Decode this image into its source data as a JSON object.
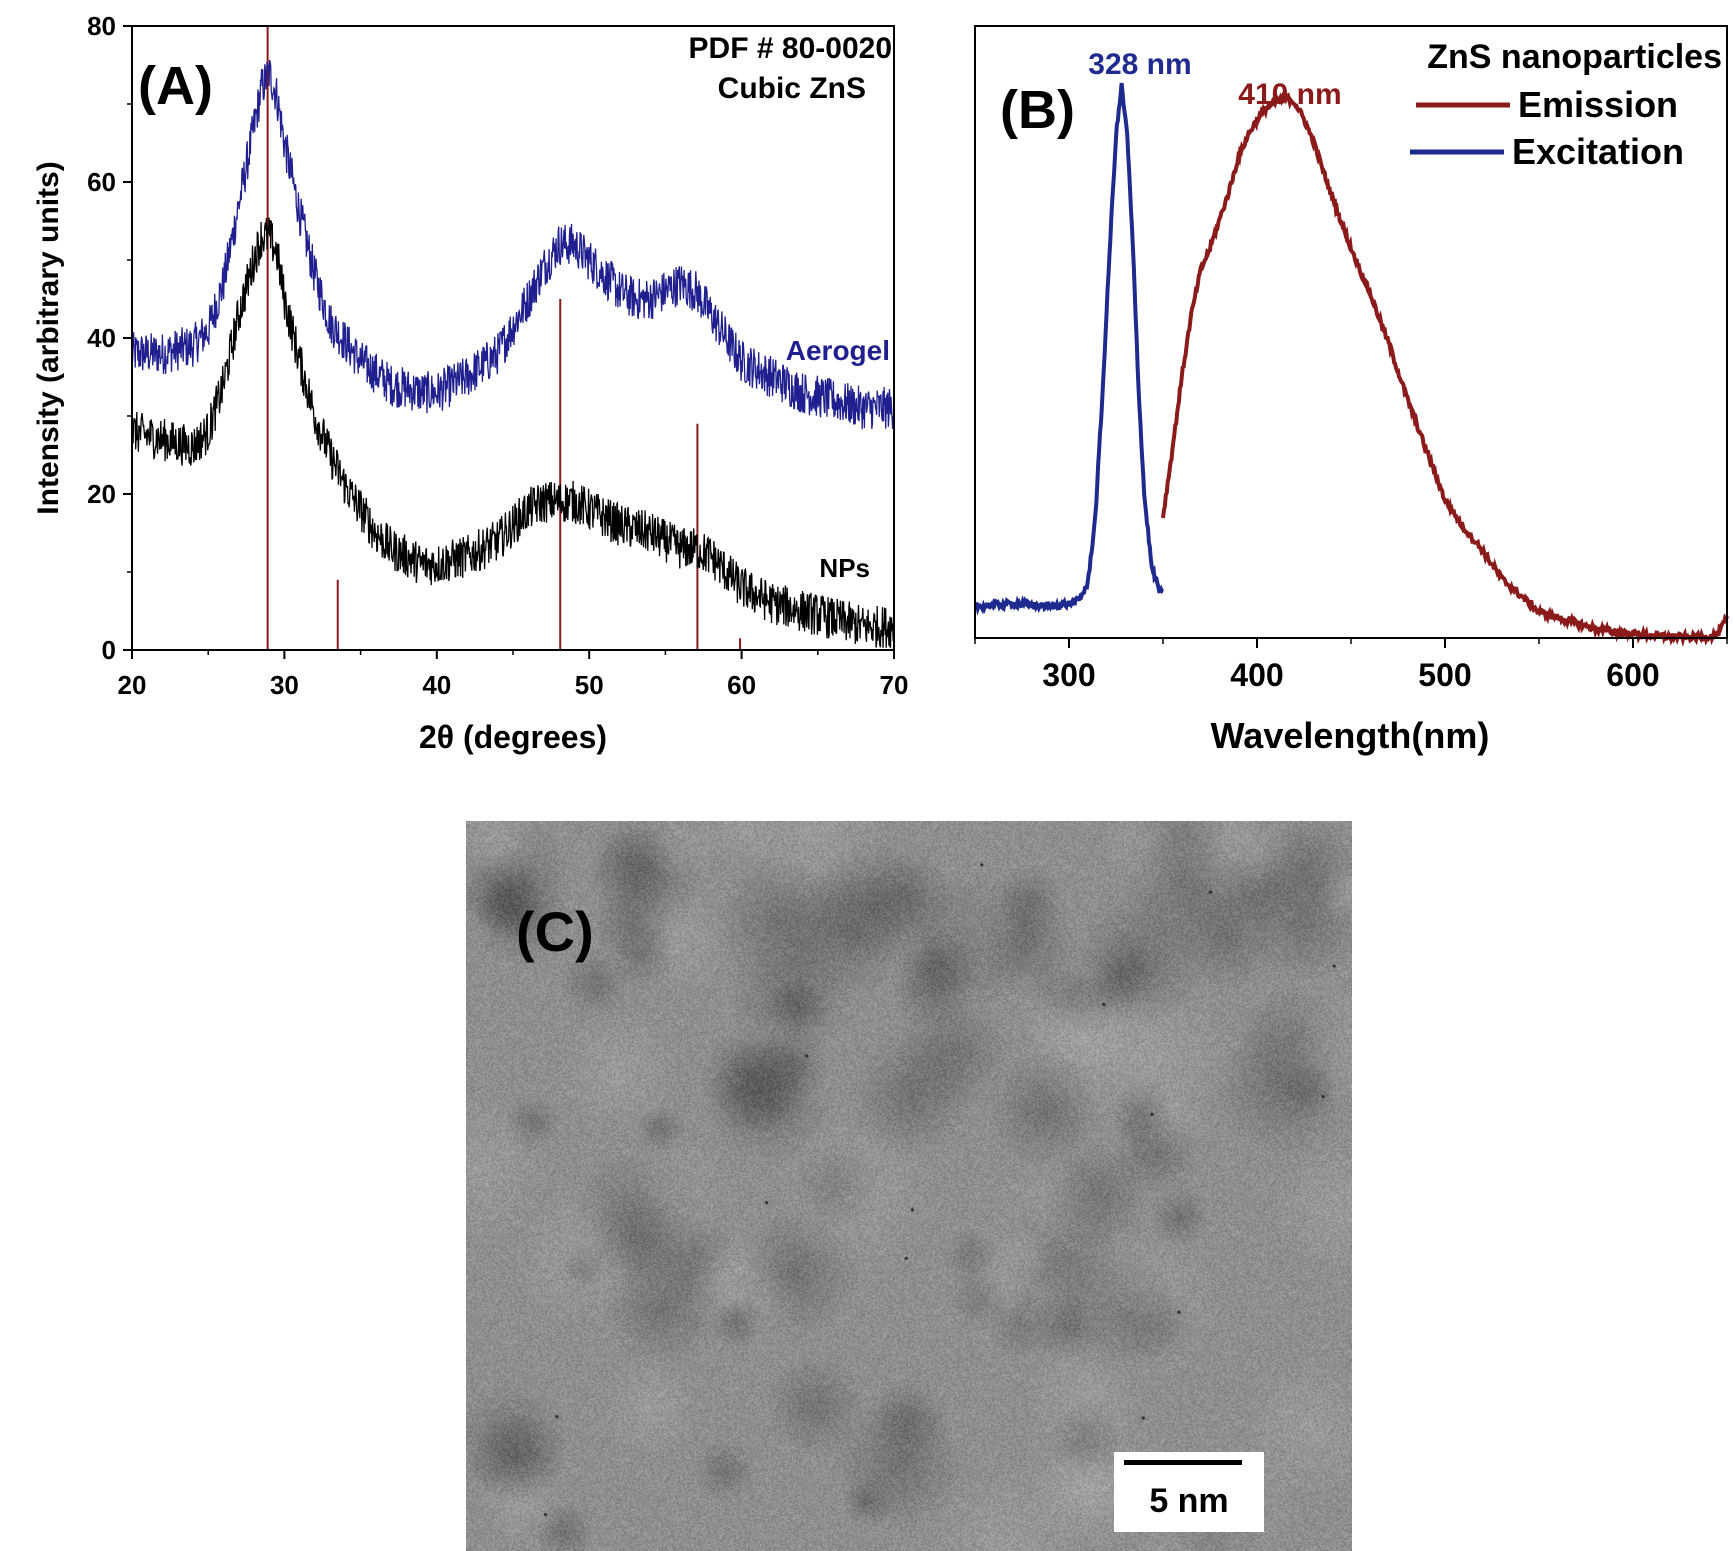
{
  "chart_data": [
    {
      "panel": "(A)",
      "type": "line",
      "xlabel": "2θ (degrees)",
      "ylabel": "Intensity (arbitrary units)",
      "xlim": [
        20,
        70
      ],
      "ylim": [
        0,
        80
      ],
      "xticks": [
        "20",
        "30",
        "40",
        "50",
        "60",
        "70"
      ],
      "yticks": [
        "0",
        "20",
        "40",
        "60",
        "80"
      ],
      "annotations": [
        "PDF # 80-0020",
        "Cubic ZnS"
      ],
      "series": [
        {
          "name": "Aerogel",
          "color": "#1f1f8f",
          "x": [
            20,
            22,
            24,
            25,
            26,
            27,
            28,
            28.5,
            29,
            29.5,
            30,
            31,
            32,
            33,
            35,
            37,
            39,
            40,
            42,
            44,
            46,
            47,
            48,
            49,
            50,
            51,
            52,
            53,
            54,
            55,
            56,
            57,
            58,
            59,
            60,
            62,
            64,
            66,
            68,
            70
          ],
          "y": [
            38,
            38,
            39,
            41,
            47,
            57,
            67,
            72,
            74,
            71,
            65,
            56,
            48,
            42,
            37,
            34,
            33,
            33,
            35,
            38,
            45,
            49,
            52,
            52,
            50,
            48,
            46,
            45,
            45,
            46,
            47,
            46,
            43,
            40,
            37,
            35,
            33,
            32,
            31,
            31
          ]
        },
        {
          "name": "NPs",
          "color": "#000000",
          "x": [
            20,
            22,
            24,
            25,
            26,
            27,
            28,
            28.5,
            29,
            29.5,
            30,
            31,
            32,
            33,
            34,
            35,
            36,
            37,
            38,
            39,
            40,
            42,
            44,
            45,
            46,
            47,
            48,
            49,
            50,
            52,
            54,
            56,
            57,
            58,
            59,
            60,
            62,
            64,
            66,
            68,
            70
          ],
          "y": [
            28,
            27,
            26,
            28,
            34,
            43,
            50,
            53,
            53,
            51,
            45,
            37,
            30,
            25,
            21,
            18,
            15,
            13,
            12,
            11,
            11,
            12,
            14,
            16,
            18,
            19,
            19,
            19,
            18,
            16,
            15,
            13,
            13,
            12,
            10,
            8,
            6,
            5,
            4,
            3,
            3
          ]
        }
      ],
      "reference_lines": {
        "color": "#8b1a1a",
        "x": [
          28.9,
          33.5,
          48.1,
          57.1,
          59.9
        ],
        "height": [
          80,
          9,
          45,
          29,
          1.5
        ]
      }
    },
    {
      "panel": "(B)",
      "type": "line",
      "xlabel": "Wavelength(nm)",
      "ylabel": "",
      "xlim": [
        250,
        650
      ],
      "ylim": [
        0,
        1
      ],
      "xticks": [
        "300",
        "400",
        "500",
        "600"
      ],
      "legend_title": "ZnS nanoparticles",
      "legend_position": "top-right",
      "peak_labels": [
        "328 nm",
        "410 nm"
      ],
      "series": [
        {
          "name": "Emission",
          "color": "#8b1a1a",
          "x": [
            350,
            355,
            360,
            365,
            370,
            375,
            380,
            385,
            390,
            395,
            400,
            405,
            410,
            415,
            420,
            425,
            430,
            440,
            450,
            460,
            470,
            480,
            490,
            500,
            510,
            520,
            530,
            540,
            550,
            560,
            570,
            580,
            590,
            600,
            610,
            620,
            630,
            640,
            645,
            650
          ],
          "y": [
            0.22,
            0.34,
            0.47,
            0.58,
            0.66,
            0.7,
            0.75,
            0.8,
            0.86,
            0.9,
            0.93,
            0.95,
            0.96,
            0.97,
            0.96,
            0.93,
            0.89,
            0.79,
            0.7,
            0.62,
            0.53,
            0.43,
            0.34,
            0.25,
            0.2,
            0.16,
            0.11,
            0.08,
            0.05,
            0.04,
            0.03,
            0.02,
            0.015,
            0.01,
            0.008,
            0.006,
            0.005,
            0.006,
            0.01,
            0.04
          ]
        },
        {
          "name": "Excitation",
          "color": "#1f2a8f",
          "x": [
            250,
            270,
            290,
            300,
            305,
            310,
            314,
            318,
            322,
            325,
            328,
            331,
            334,
            337,
            340,
            344,
            348,
            350
          ],
          "y": [
            0.06,
            0.065,
            0.06,
            0.065,
            0.07,
            0.1,
            0.22,
            0.45,
            0.72,
            0.9,
            0.99,
            0.9,
            0.7,
            0.45,
            0.26,
            0.13,
            0.09,
            0.08
          ]
        }
      ]
    }
  ],
  "tem": {
    "label": "(C)",
    "scale_bar": "5 nm"
  }
}
